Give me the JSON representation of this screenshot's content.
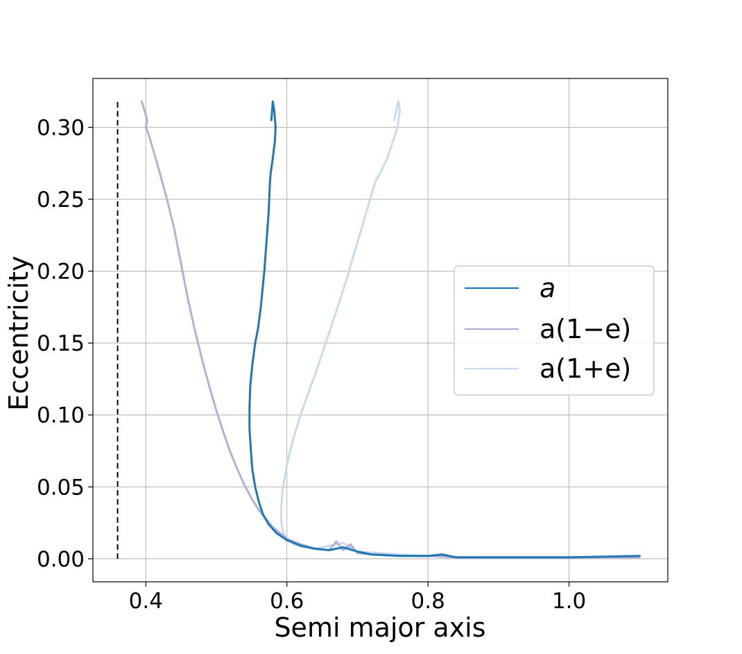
{
  "chart_data": {
    "type": "line",
    "xlabel": "Semi major axis",
    "ylabel": "Eccentricity",
    "xlim": [
      0.325,
      1.14
    ],
    "ylim": [
      -0.016,
      0.334
    ],
    "xticks": [
      0.4,
      0.6,
      0.8,
      1.0
    ],
    "xtick_labels": [
      "0.4",
      "0.6",
      "0.8",
      "1.0"
    ],
    "yticks": [
      0.0,
      0.05,
      0.1,
      0.15,
      0.2,
      0.25,
      0.3
    ],
    "ytick_labels": [
      "0.00",
      "0.05",
      "0.10",
      "0.15",
      "0.20",
      "0.25",
      "0.30"
    ],
    "grid": true,
    "legend_position": "center-right",
    "reference_line": {
      "x": 0.36,
      "y_range": [
        0.0,
        0.318
      ],
      "style": "dashed",
      "color": "#000000"
    },
    "series": [
      {
        "name": "a",
        "legend_label": "a",
        "color": "#1f77b4",
        "x": [
          0.578,
          0.58,
          0.582,
          0.584,
          0.583,
          0.579,
          0.577,
          0.576,
          0.574,
          0.571,
          0.568,
          0.566,
          0.563,
          0.559,
          0.555,
          0.551,
          0.548,
          0.547,
          0.547,
          0.549,
          0.551,
          0.555,
          0.56,
          0.566,
          0.574,
          0.585,
          0.6,
          0.62,
          0.64,
          0.66,
          0.68,
          0.7,
          0.72,
          0.76,
          0.8,
          0.82,
          0.84,
          0.9,
          1.0,
          1.1
        ],
        "y": [
          0.305,
          0.318,
          0.312,
          0.3,
          0.29,
          0.275,
          0.268,
          0.262,
          0.24,
          0.22,
          0.2,
          0.19,
          0.175,
          0.16,
          0.15,
          0.135,
          0.12,
          0.105,
          0.09,
          0.075,
          0.062,
          0.05,
          0.04,
          0.031,
          0.024,
          0.018,
          0.013,
          0.009,
          0.007,
          0.006,
          0.008,
          0.005,
          0.003,
          0.002,
          0.002,
          0.003,
          0.001,
          0.001,
          0.001,
          0.002
        ]
      },
      {
        "name": "a(1-e)",
        "legend_label": "a(1−e)",
        "color": "#b4afd6",
        "x": [
          0.394,
          0.398,
          0.402,
          0.4,
          0.404,
          0.41,
          0.42,
          0.43,
          0.44,
          0.45,
          0.46,
          0.47,
          0.48,
          0.49,
          0.5,
          0.51,
          0.52,
          0.53,
          0.54,
          0.55,
          0.56,
          0.58,
          0.6,
          0.62,
          0.64,
          0.66,
          0.67,
          0.68,
          0.69,
          0.7,
          0.72,
          0.76,
          0.8,
          0.84,
          0.9,
          1.0,
          1.1
        ],
        "y": [
          0.318,
          0.312,
          0.305,
          0.3,
          0.295,
          0.285,
          0.268,
          0.25,
          0.23,
          0.205,
          0.18,
          0.158,
          0.138,
          0.12,
          0.103,
          0.088,
          0.074,
          0.062,
          0.051,
          0.042,
          0.034,
          0.022,
          0.014,
          0.01,
          0.007,
          0.006,
          0.012,
          0.006,
          0.01,
          0.004,
          0.003,
          0.002,
          0.002,
          0.001,
          0.001,
          0.001,
          0.001
        ]
      },
      {
        "name": "a(1+e)",
        "legend_label": "a(1+e)",
        "color": "#c6dbef",
        "x": [
          0.752,
          0.758,
          0.76,
          0.757,
          0.75,
          0.742,
          0.732,
          0.725,
          0.715,
          0.7,
          0.685,
          0.67,
          0.655,
          0.64,
          0.628,
          0.618,
          0.61,
          0.603,
          0.598,
          0.594,
          0.592,
          0.592,
          0.594,
          0.6,
          0.61,
          0.625,
          0.64,
          0.66,
          0.68,
          0.7,
          0.76,
          0.8,
          0.84,
          0.9,
          1.0,
          1.1
        ],
        "y": [
          0.305,
          0.318,
          0.312,
          0.3,
          0.29,
          0.278,
          0.268,
          0.262,
          0.245,
          0.22,
          0.195,
          0.172,
          0.15,
          0.128,
          0.112,
          0.098,
          0.085,
          0.072,
          0.06,
          0.048,
          0.036,
          0.026,
          0.019,
          0.014,
          0.01,
          0.008,
          0.007,
          0.009,
          0.011,
          0.005,
          0.003,
          0.002,
          0.001,
          0.001,
          0.001,
          0.001
        ]
      }
    ]
  }
}
